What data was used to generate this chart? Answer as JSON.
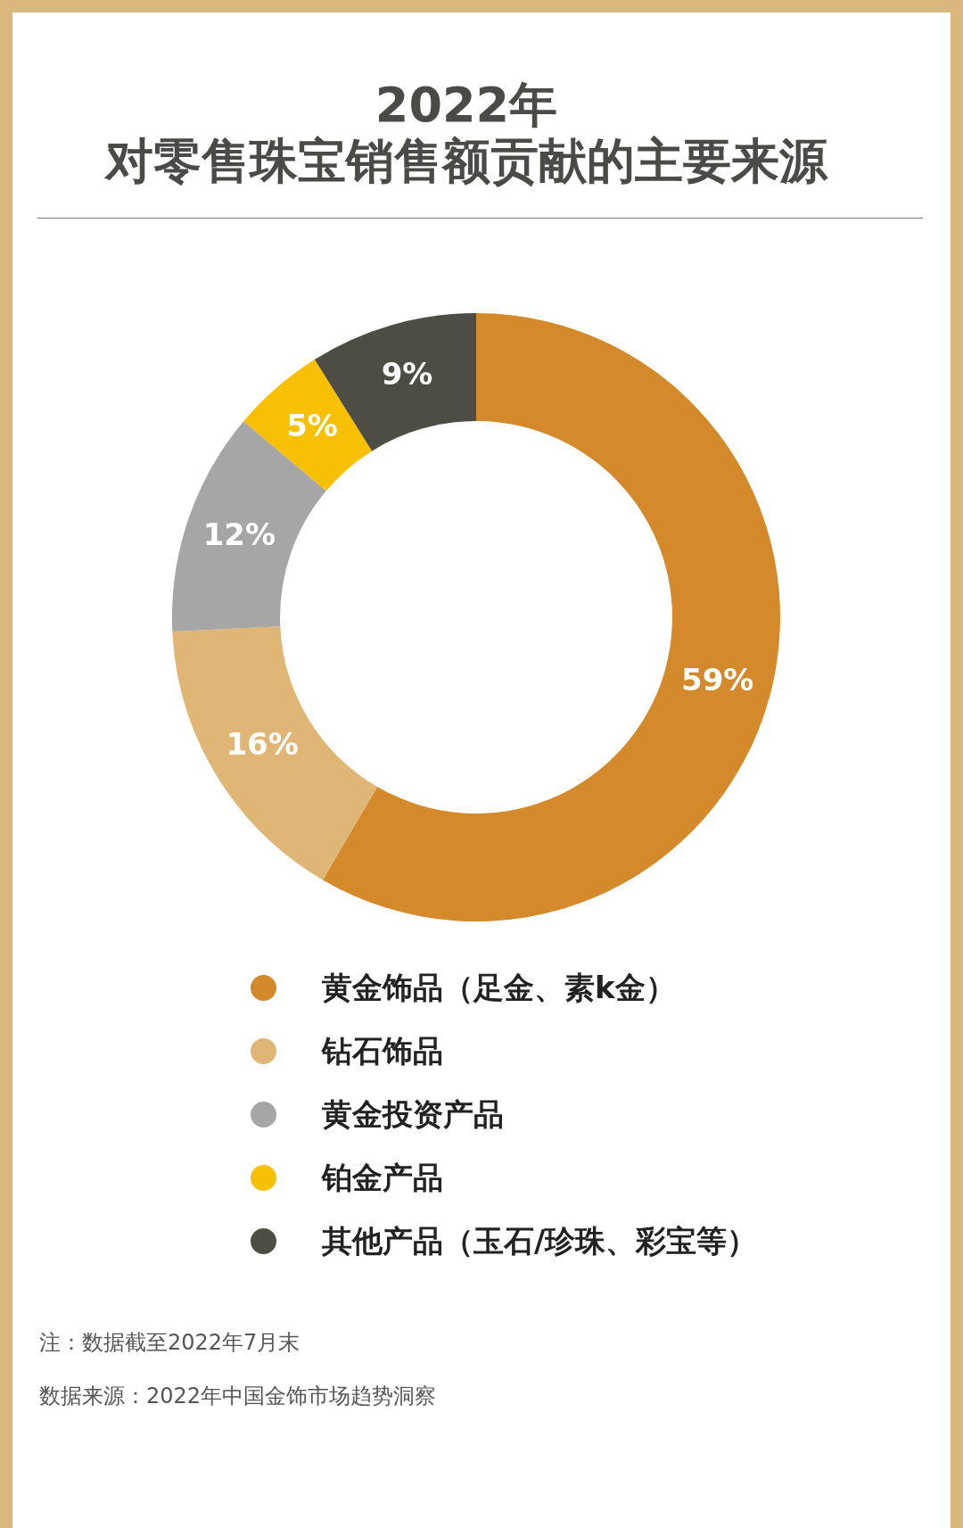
{
  "chart_data": {
    "type": "donut",
    "title": "2022年",
    "subtitle": "对零售珠宝销售额贡献的主要来源",
    "categories": [
      "黄金饰品（足金、素k金）",
      "钻石饰品",
      "黄金投资产品",
      "铂金产品",
      "其他产品（玉石/珍珠、彩宝等）"
    ],
    "values": [
      59,
      16,
      12,
      5,
      9
    ],
    "colors": [
      "#d4892b",
      "#dfb675",
      "#a6a6a6",
      "#f7c003",
      "#4e4d45"
    ],
    "value_labels": [
      "59%",
      "16%",
      "12%",
      "5%",
      "9%"
    ],
    "legend": "bottom",
    "annotations": [
      "注：数据截至2022年7月末",
      "数据来源：2022年中国金饰市场趋势洞察"
    ]
  }
}
